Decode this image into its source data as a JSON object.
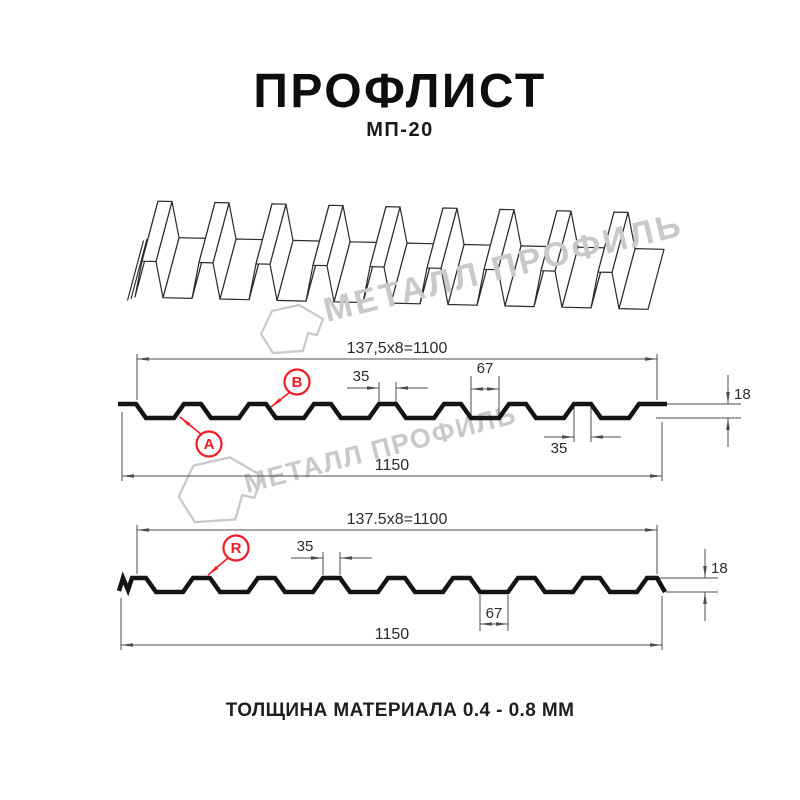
{
  "header": {
    "title": "ПРОФЛИСТ",
    "subtitle": "МП-20"
  },
  "watermark": {
    "brand": "МЕТАЛЛ ПРОФИЛЬ"
  },
  "footer": {
    "note": "ТОЛЩИНА МАТЕРИАЛА 0.4 - 0.8 ММ"
  },
  "colors": {
    "accent_red": "#ee1c25",
    "drawing_line": "#4d4d4d",
    "profile_line": "#141414",
    "watermark_gray": "#c9c9c9"
  },
  "drawing_top": {
    "callouts": {
      "a": "A",
      "b": "B"
    },
    "dims": {
      "coverage": "137,5x8=1100",
      "rib_top_width": "35",
      "valley_width": "67",
      "profile_height": "18",
      "rib_bottom_width": "35",
      "overall_width": "1150"
    }
  },
  "drawing_bottom": {
    "callouts": {
      "r": "R"
    },
    "dims": {
      "coverage": "137.5x8=1100",
      "rib_top_width": "35",
      "valley_width": "67",
      "profile_height": "18",
      "overall_width": "1150"
    }
  }
}
